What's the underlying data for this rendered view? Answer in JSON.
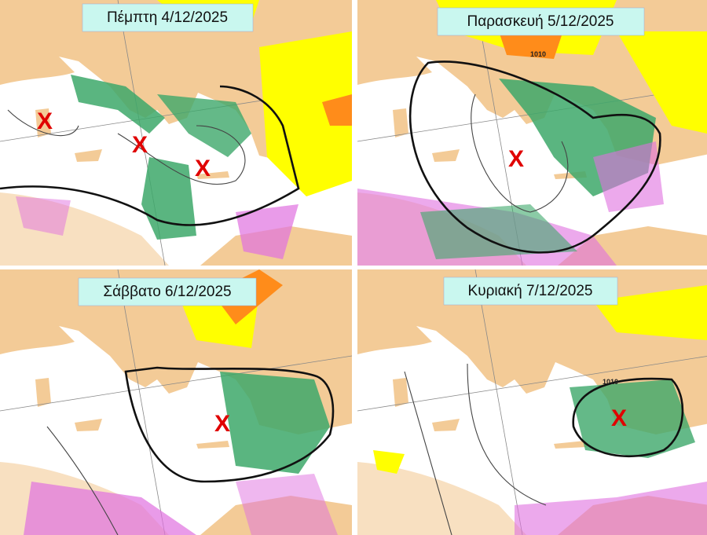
{
  "panels": [
    {
      "title": "Πέμπτη 4/12/2025",
      "markers": [
        "X",
        "X",
        "X"
      ]
    },
    {
      "title": "Παρασκευή 5/12/2025",
      "markers": [
        "X"
      ],
      "isobar_label": "1010"
    },
    {
      "title": "Σάββατο 6/12/2025",
      "markers": [
        "X"
      ]
    },
    {
      "title": "Κυριακή 7/12/2025",
      "markers": [
        "X"
      ],
      "isobar_label": "1010"
    }
  ]
}
